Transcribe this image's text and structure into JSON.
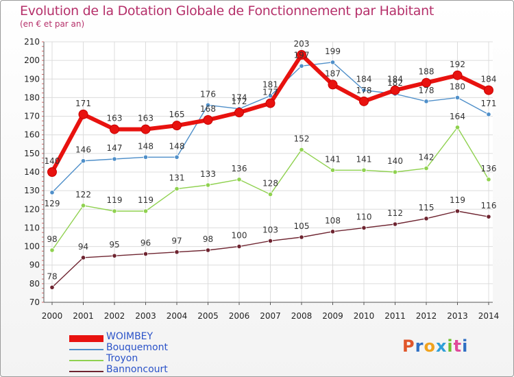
{
  "title": "Evolution de la Dotation Globale de Fonctionnement par Habitant",
  "subtitle": "(en € et par an)",
  "logo": {
    "text": "Proxiti"
  },
  "chart_data": {
    "type": "line",
    "x": [
      "2000",
      "2001",
      "2002",
      "2003",
      "2004",
      "2005",
      "2006",
      "2007",
      "2008",
      "2009",
      "2010",
      "2011",
      "2012",
      "2013",
      "2014"
    ],
    "ylim": [
      70,
      210
    ],
    "yticks": [
      70,
      80,
      90,
      100,
      110,
      120,
      130,
      140,
      150,
      160,
      170,
      180,
      190,
      200,
      210
    ],
    "grid": true,
    "legend_position": "bottom-left",
    "series": [
      {
        "name": "WOIMBEY",
        "color": "#e8120f",
        "values": [
          140,
          171,
          163,
          163,
          165,
          168,
          172,
          177,
          203,
          187,
          178,
          184,
          188,
          192,
          184
        ]
      },
      {
        "name": "Bouquemont",
        "color": "#4f8fc9",
        "values": [
          129,
          146,
          147,
          148,
          148,
          176,
          174,
          181,
          197,
          199,
          184,
          182,
          178,
          180,
          171
        ]
      },
      {
        "name": "Troyon",
        "color": "#8fd14f",
        "values": [
          98,
          122,
          119,
          119,
          131,
          133,
          136,
          128,
          152,
          141,
          141,
          140,
          142,
          164,
          136
        ]
      },
      {
        "name": "Bannoncourt",
        "color": "#6e2430",
        "values": [
          78,
          94,
          95,
          96,
          97,
          98,
          100,
          103,
          105,
          108,
          110,
          112,
          115,
          119,
          116
        ]
      }
    ]
  }
}
